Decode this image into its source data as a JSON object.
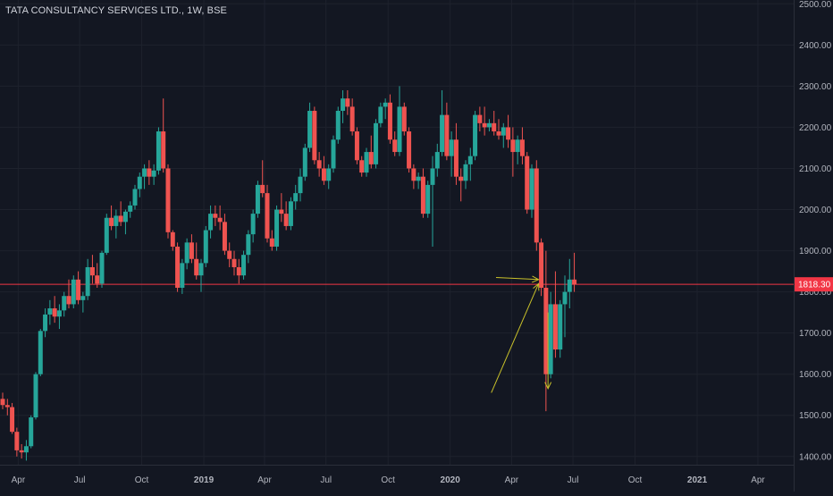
{
  "header": {
    "title": "TATA CONSULTANCY SERVICES LTD., 1W, BSE"
  },
  "colors": {
    "background": "#131722",
    "grid": "#1e222d",
    "axis_text": "#b2b5be",
    "up": "#26a69a",
    "down": "#ef5350",
    "price_line": "#f23645",
    "price_label_bg": "#f23645",
    "drawing": "#c9c12a"
  },
  "chart_data": {
    "type": "candlestick",
    "title": "TATA CONSULTANCY SERVICES LTD., 1W, BSE",
    "interval": "1W",
    "exchange": "BSE",
    "y_axis": {
      "position": "right",
      "range": [
        1380,
        2505
      ],
      "ticks": [
        1400,
        1500,
        1600,
        1700,
        1800,
        1900,
        2000,
        2100,
        2200,
        2300,
        2400,
        2500
      ],
      "tick_labels": [
        "1400.00",
        "1500.00",
        "1600.00",
        "1700.00",
        "1800.00",
        "1900.00",
        "2000.00",
        "2100.00",
        "2200.00",
        "2300.00",
        "2400.00",
        "2500.00"
      ]
    },
    "x_axis": {
      "first_week": "2018-03-05",
      "range": [
        "2018-03-05",
        "2021-05-24"
      ],
      "ticks": [
        {
          "date": "2018-04-01",
          "label": "Apr"
        },
        {
          "date": "2018-07-01",
          "label": "Jul"
        },
        {
          "date": "2018-10-01",
          "label": "Oct"
        },
        {
          "date": "2019-01-01",
          "label": "2019"
        },
        {
          "date": "2019-04-01",
          "label": "Apr"
        },
        {
          "date": "2019-07-01",
          "label": "Jul"
        },
        {
          "date": "2019-10-01",
          "label": "Oct"
        },
        {
          "date": "2020-01-01",
          "label": "2020"
        },
        {
          "date": "2020-04-01",
          "label": "Apr"
        },
        {
          "date": "2020-07-01",
          "label": "Jul"
        },
        {
          "date": "2020-10-01",
          "label": "Oct"
        },
        {
          "date": "2021-01-01",
          "label": "2021"
        },
        {
          "date": "2021-04-01",
          "label": "Apr"
        }
      ]
    },
    "grid": true,
    "candles": [
      [
        1540,
        1555,
        1515,
        1525
      ],
      [
        1525,
        1540,
        1500,
        1520
      ],
      [
        1520,
        1530,
        1455,
        1460
      ],
      [
        1460,
        1470,
        1400,
        1415
      ],
      [
        1415,
        1430,
        1395,
        1410
      ],
      [
        1410,
        1440,
        1390,
        1425
      ],
      [
        1425,
        1500,
        1420,
        1495
      ],
      [
        1495,
        1605,
        1490,
        1600
      ],
      [
        1600,
        1710,
        1595,
        1705
      ],
      [
        1705,
        1760,
        1690,
        1745
      ],
      [
        1745,
        1780,
        1720,
        1760
      ],
      [
        1760,
        1790,
        1725,
        1740
      ],
      [
        1740,
        1770,
        1710,
        1755
      ],
      [
        1755,
        1800,
        1740,
        1790
      ],
      [
        1790,
        1830,
        1760,
        1770
      ],
      [
        1770,
        1840,
        1760,
        1830
      ],
      [
        1830,
        1850,
        1770,
        1780
      ],
      [
        1780,
        1800,
        1750,
        1790
      ],
      [
        1790,
        1880,
        1780,
        1860
      ],
      [
        1860,
        1890,
        1820,
        1840
      ],
      [
        1840,
        1870,
        1810,
        1820
      ],
      [
        1820,
        1900,
        1810,
        1895
      ],
      [
        1895,
        1990,
        1890,
        1980
      ],
      [
        1980,
        2010,
        1950,
        1960
      ],
      [
        1960,
        2000,
        1930,
        1985
      ],
      [
        1985,
        2020,
        1960,
        1970
      ],
      [
        1970,
        2000,
        1940,
        1995
      ],
      [
        1995,
        2020,
        1980,
        2010
      ],
      [
        2010,
        2060,
        2000,
        2050
      ],
      [
        2050,
        2090,
        2030,
        2080
      ],
      [
        2080,
        2110,
        2050,
        2100
      ],
      [
        2100,
        2120,
        2060,
        2080
      ],
      [
        2080,
        2110,
        2060,
        2095
      ],
      [
        2095,
        2200,
        2085,
        2190
      ],
      [
        2190,
        2270,
        2090,
        2100
      ],
      [
        2100,
        2110,
        1930,
        1945
      ],
      [
        1945,
        1950,
        1900,
        1910
      ],
      [
        1910,
        1920,
        1800,
        1810
      ],
      [
        1810,
        1880,
        1795,
        1870
      ],
      [
        1870,
        1930,
        1855,
        1920
      ],
      [
        1920,
        1940,
        1870,
        1880
      ],
      [
        1880,
        1920,
        1830,
        1840
      ],
      [
        1840,
        1880,
        1800,
        1870
      ],
      [
        1870,
        1960,
        1860,
        1950
      ],
      [
        1950,
        2010,
        1930,
        1990
      ],
      [
        1990,
        2010,
        1960,
        1980
      ],
      [
        1980,
        2010,
        1950,
        1970
      ],
      [
        1970,
        1990,
        1890,
        1900
      ],
      [
        1900,
        1920,
        1860,
        1880
      ],
      [
        1880,
        1900,
        1840,
        1860
      ],
      [
        1860,
        1880,
        1820,
        1840
      ],
      [
        1840,
        1900,
        1830,
        1890
      ],
      [
        1890,
        1950,
        1870,
        1940
      ],
      [
        1940,
        2000,
        1920,
        1990
      ],
      [
        1990,
        2070,
        1980,
        2060
      ],
      [
        2060,
        2120,
        2030,
        2040
      ],
      [
        2040,
        2060,
        1920,
        1930
      ],
      [
        1930,
        1950,
        1900,
        1910
      ],
      [
        1910,
        2010,
        1900,
        2000
      ],
      [
        2000,
        2040,
        1970,
        1990
      ],
      [
        1990,
        2020,
        1950,
        1960
      ],
      [
        1960,
        2030,
        1950,
        2020
      ],
      [
        2020,
        2060,
        2000,
        2040
      ],
      [
        2040,
        2100,
        2020,
        2080
      ],
      [
        2080,
        2160,
        2070,
        2150
      ],
      [
        2150,
        2260,
        2140,
        2240
      ],
      [
        2240,
        2250,
        2110,
        2120
      ],
      [
        2120,
        2140,
        2080,
        2100
      ],
      [
        2100,
        2130,
        2060,
        2070
      ],
      [
        2070,
        2110,
        2050,
        2100
      ],
      [
        2100,
        2180,
        2090,
        2170
      ],
      [
        2170,
        2250,
        2160,
        2240
      ],
      [
        2240,
        2290,
        2210,
        2270
      ],
      [
        2270,
        2290,
        2230,
        2250
      ],
      [
        2250,
        2270,
        2180,
        2190
      ],
      [
        2190,
        2200,
        2110,
        2120
      ],
      [
        2120,
        2130,
        2080,
        2090
      ],
      [
        2090,
        2150,
        2080,
        2140
      ],
      [
        2140,
        2180,
        2100,
        2110
      ],
      [
        2110,
        2220,
        2100,
        2210
      ],
      [
        2210,
        2260,
        2200,
        2250
      ],
      [
        2250,
        2270,
        2220,
        2260
      ],
      [
        2260,
        2280,
        2160,
        2170
      ],
      [
        2170,
        2190,
        2130,
        2140
      ],
      [
        2140,
        2300,
        2130,
        2250
      ],
      [
        2250,
        2260,
        2180,
        2190
      ],
      [
        2190,
        2200,
        2090,
        2100
      ],
      [
        2100,
        2110,
        2050,
        2070
      ],
      [
        2070,
        2090,
        2050,
        2080
      ],
      [
        2080,
        2100,
        1980,
        1990
      ],
      [
        1990,
        2070,
        1980,
        2060
      ],
      [
        2060,
        2130,
        1910,
        2100
      ],
      [
        2100,
        2160,
        2080,
        2140
      ],
      [
        2140,
        2290,
        2130,
        2230
      ],
      [
        2230,
        2260,
        2120,
        2130
      ],
      [
        2130,
        2190,
        2080,
        2170
      ],
      [
        2170,
        2210,
        2060,
        2080
      ],
      [
        2080,
        2100,
        2020,
        2070
      ],
      [
        2070,
        2120,
        2050,
        2110
      ],
      [
        2110,
        2150,
        2070,
        2130
      ],
      [
        2130,
        2240,
        2120,
        2230
      ],
      [
        2230,
        2250,
        2190,
        2210
      ],
      [
        2210,
        2250,
        2180,
        2200
      ],
      [
        2200,
        2220,
        2190,
        2210
      ],
      [
        2210,
        2240,
        2180,
        2190
      ],
      [
        2190,
        2220,
        2170,
        2180
      ],
      [
        2180,
        2210,
        2150,
        2200
      ],
      [
        2200,
        2230,
        2150,
        2170
      ],
      [
        2170,
        2200,
        2080,
        2140
      ],
      [
        2140,
        2180,
        2110,
        2170
      ],
      [
        2170,
        2200,
        2110,
        2130
      ],
      [
        2130,
        2140,
        1990,
        2000
      ],
      [
        2000,
        2110,
        1980,
        2100
      ],
      [
        2100,
        2120,
        1900,
        1920
      ],
      [
        1920,
        1930,
        1790,
        1810
      ],
      [
        1810,
        1900,
        1510,
        1600
      ],
      [
        1600,
        1800,
        1590,
        1770
      ],
      [
        1770,
        1850,
        1640,
        1660
      ],
      [
        1660,
        1780,
        1640,
        1770
      ],
      [
        1770,
        1840,
        1690,
        1800
      ],
      [
        1800,
        1880,
        1760,
        1830
      ],
      [
        1830,
        1895,
        1800,
        1818.3
      ]
    ],
    "last_price": 1818.3,
    "last_price_label": "1818.30",
    "drawings": [
      {
        "type": "arrow",
        "from": {
          "date": "2020-03-09",
          "price": 1835
        },
        "to": {
          "date": "2020-05-11",
          "price": 1830
        }
      },
      {
        "type": "arrow",
        "from": {
          "date": "2020-03-02",
          "price": 1555
        },
        "to": {
          "date": "2020-05-11",
          "price": 1820
        }
      },
      {
        "type": "arrow",
        "from": {
          "date": "2020-05-25",
          "price": 1750
        },
        "to": {
          "date": "2020-05-25",
          "price": 1565
        }
      }
    ]
  }
}
